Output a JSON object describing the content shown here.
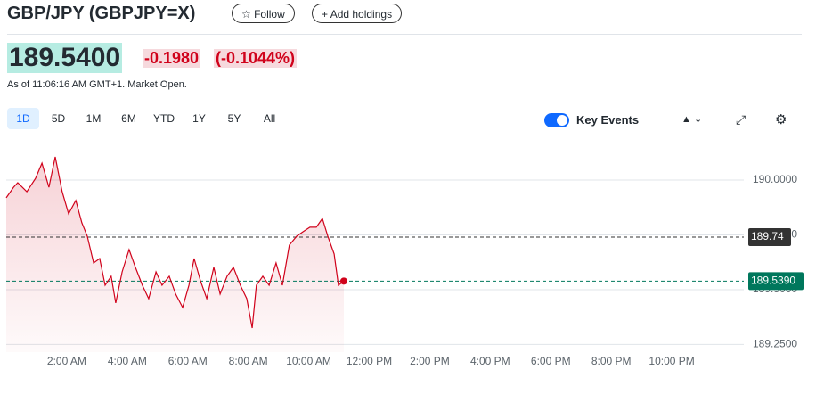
{
  "header": {
    "title": "GBP/JPY (GBPJPY=X)",
    "follow": "Follow",
    "add": "Add holdings",
    "price": "189.5400",
    "change": "-0.1980",
    "change_pct": "(-0.1044%)",
    "as_of": "As of 11:06:16 AM GMT+1. Market Open."
  },
  "toolbar": {
    "ranges": [
      "1D",
      "5D",
      "1M",
      "6M",
      "YTD",
      "1Y",
      "5Y",
      "All"
    ],
    "key_events": "Key Events"
  },
  "chart_data": {
    "type": "line",
    "color": "#d0021b",
    "grid": true,
    "x": [
      0,
      0.24,
      0.38,
      0.68,
      0.97,
      1.18,
      1.41,
      1.62,
      1.85,
      2.06,
      2.3,
      2.5,
      2.68,
      2.89,
      3.09,
      3.27,
      3.47,
      3.62,
      3.83,
      4.06,
      4.27,
      4.5,
      4.71,
      4.95,
      5.15,
      5.39,
      5.6,
      5.83,
      6.04,
      6.21,
      6.42,
      6.63,
      6.86,
      7.07,
      7.3,
      7.51,
      7.74,
      7.95,
      8.13,
      8.27,
      8.48,
      8.69,
      8.92,
      9.13,
      9.36,
      9.6,
      9.81,
      10.04,
      10.25,
      10.45,
      10.63,
      10.84,
      10.98,
      11.16
    ],
    "values": [
      189.919,
      189.967,
      189.988,
      189.947,
      190.008,
      190.077,
      189.967,
      190.106,
      189.947,
      189.846,
      189.907,
      189.805,
      189.744,
      189.622,
      189.642,
      189.52,
      189.561,
      189.439,
      189.581,
      189.683,
      189.602,
      189.52,
      189.459,
      189.581,
      189.52,
      189.561,
      189.48,
      189.419,
      189.52,
      189.642,
      189.541,
      189.459,
      189.602,
      189.48,
      189.561,
      189.602,
      189.52,
      189.459,
      189.325,
      189.52,
      189.561,
      189.52,
      189.622,
      189.52,
      189.703,
      189.744,
      189.764,
      189.785,
      189.785,
      189.825,
      189.744,
      189.663,
      189.52,
      189.539
    ],
    "xlim": [
      0,
      24
    ],
    "xticks": [
      {
        "value": 2,
        "label": "2:00 AM"
      },
      {
        "value": 4,
        "label": "4:00 AM"
      },
      {
        "value": 6,
        "label": "6:00 AM"
      },
      {
        "value": 8,
        "label": "8:00 AM"
      },
      {
        "value": 10,
        "label": "10:00 AM"
      },
      {
        "value": 12,
        "label": "12:00 PM"
      },
      {
        "value": 14,
        "label": "2:00 PM"
      },
      {
        "value": 16,
        "label": "4:00 PM"
      },
      {
        "value": 18,
        "label": "6:00 PM"
      },
      {
        "value": 20,
        "label": "8:00 PM"
      },
      {
        "value": 22,
        "label": "10:00 PM"
      }
    ],
    "ylim": [
      189.215,
      190.171
    ],
    "yticks": [
      {
        "value": 190,
        "label": "190.0000"
      },
      {
        "value": 189.75,
        "label": "189.7500"
      },
      {
        "value": 189.5,
        "label": "189.5000"
      },
      {
        "value": 189.25,
        "label": "189.2500"
      }
    ],
    "reference_lines": [
      {
        "value": 189.74,
        "label": "189.74",
        "color": "#333333"
      },
      {
        "value": 189.539,
        "label": "189.5390",
        "color": "#00775c"
      }
    ]
  }
}
